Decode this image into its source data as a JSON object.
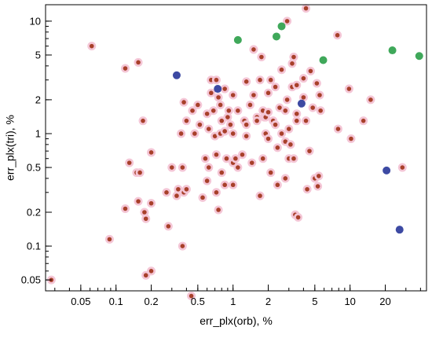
{
  "chart_data": {
    "type": "scatter",
    "title": "",
    "xlabel": "err_plx(orb), %",
    "ylabel": "err_plx(tri), %",
    "x_scale": "log",
    "y_scale": "log",
    "xlim": [
      0.025,
      45
    ],
    "ylim": [
      0.04,
      14
    ],
    "grid": false,
    "x_ticks": [
      {
        "value": 0.05,
        "label": "0.05"
      },
      {
        "value": 0.1,
        "label": "0.1"
      },
      {
        "value": 0.2,
        "label": "0.2"
      },
      {
        "value": 0.5,
        "label": "0.5"
      },
      {
        "value": 1,
        "label": "1"
      },
      {
        "value": 2,
        "label": "2"
      },
      {
        "value": 5,
        "label": "5"
      },
      {
        "value": 10,
        "label": "10"
      },
      {
        "value": 20,
        "label": "20"
      }
    ],
    "y_ticks": [
      {
        "value": 0.05,
        "label": "0.05"
      },
      {
        "value": 0.1,
        "label": "0.1"
      },
      {
        "value": 0.2,
        "label": "0.2"
      },
      {
        "value": 0.5,
        "label": "0.5"
      },
      {
        "value": 1,
        "label": "1"
      },
      {
        "value": 2,
        "label": "2"
      },
      {
        "value": 5,
        "label": "5"
      },
      {
        "value": 10,
        "label": "10"
      }
    ],
    "series": [
      {
        "color": "#a8402a",
        "halo_color": "#f4c6d6",
        "marker_size": "small",
        "points": [
          [
            0.028,
            0.05
          ],
          [
            0.062,
            6.0
          ],
          [
            0.088,
            0.115
          ],
          [
            0.12,
            0.215
          ],
          [
            0.12,
            3.8
          ],
          [
            0.13,
            0.55
          ],
          [
            0.15,
            0.45
          ],
          [
            0.155,
            0.25
          ],
          [
            0.155,
            4.3
          ],
          [
            0.16,
            0.45
          ],
          [
            0.17,
            1.3
          ],
          [
            0.175,
            0.2
          ],
          [
            0.18,
            0.175
          ],
          [
            0.18,
            0.055
          ],
          [
            0.2,
            0.06
          ],
          [
            0.2,
            0.24
          ],
          [
            0.2,
            0.68
          ],
          [
            0.27,
            0.3
          ],
          [
            0.28,
            0.15
          ],
          [
            0.3,
            0.5
          ],
          [
            0.33,
            0.28
          ],
          [
            0.34,
            0.32
          ],
          [
            0.36,
            1.0
          ],
          [
            0.37,
            0.1
          ],
          [
            0.37,
            0.5
          ],
          [
            0.38,
            0.3
          ],
          [
            0.38,
            1.9
          ],
          [
            0.4,
            0.32
          ],
          [
            0.4,
            1.3
          ],
          [
            0.44,
            0.036
          ],
          [
            0.45,
            1.6
          ],
          [
            0.47,
            1.0
          ],
          [
            0.5,
            1.8
          ],
          [
            0.52,
            1.2
          ],
          [
            0.55,
            0.27
          ],
          [
            0.58,
            0.6
          ],
          [
            0.6,
            0.38
          ],
          [
            0.6,
            1.5
          ],
          [
            0.62,
            0.5
          ],
          [
            0.62,
            1.1
          ],
          [
            0.65,
            2.3
          ],
          [
            0.65,
            3.0
          ],
          [
            0.68,
            1.6
          ],
          [
            0.7,
            0.95
          ],
          [
            0.72,
            3.0
          ],
          [
            0.72,
            0.3
          ],
          [
            0.72,
            0.65
          ],
          [
            0.75,
            2.1
          ],
          [
            0.75,
            0.21
          ],
          [
            0.78,
            1.8
          ],
          [
            0.78,
            1.0
          ],
          [
            0.8,
            0.45
          ],
          [
            0.8,
            1.3
          ],
          [
            0.85,
            1.05
          ],
          [
            0.85,
            2.5
          ],
          [
            0.85,
            0.35
          ],
          [
            0.88,
            0.6
          ],
          [
            0.9,
            1.4
          ],
          [
            0.92,
            1.6
          ],
          [
            0.95,
            1.2
          ],
          [
            1.0,
            0.35
          ],
          [
            1.0,
            2.2
          ],
          [
            1.0,
            0.55
          ],
          [
            1.0,
            1.0
          ],
          [
            1.05,
            0.6
          ],
          [
            1.1,
            1.6
          ],
          [
            1.1,
            0.5
          ],
          [
            1.2,
            0.65
          ],
          [
            1.25,
            1.3
          ],
          [
            1.3,
            1.2
          ],
          [
            1.3,
            2.9
          ],
          [
            1.3,
            0.95
          ],
          [
            1.4,
            1.8
          ],
          [
            1.45,
            0.55
          ],
          [
            1.5,
            5.6
          ],
          [
            1.5,
            2.2
          ],
          [
            1.6,
            1.4
          ],
          [
            1.6,
            1.3
          ],
          [
            1.7,
            3.0
          ],
          [
            1.7,
            0.28
          ],
          [
            1.75,
            4.8
          ],
          [
            1.8,
            1.6
          ],
          [
            1.8,
            0.6
          ],
          [
            1.85,
            1.4
          ],
          [
            1.9,
            1.0
          ],
          [
            1.9,
            1.4
          ],
          [
            2.0,
            1.55
          ],
          [
            2.0,
            2.3
          ],
          [
            2.0,
            0.9
          ],
          [
            2.1,
            3.0
          ],
          [
            2.1,
            0.45
          ],
          [
            2.2,
            1.3
          ],
          [
            2.3,
            1.2
          ],
          [
            2.3,
            2.6
          ],
          [
            2.4,
            0.35
          ],
          [
            2.4,
            0.75
          ],
          [
            2.5,
            1.7
          ],
          [
            2.6,
            1.0
          ],
          [
            2.6,
            3.7
          ],
          [
            2.8,
            0.4
          ],
          [
            2.8,
            0.85
          ],
          [
            2.8,
            1.6
          ],
          [
            2.9,
            2.0
          ],
          [
            2.9,
            10.0
          ],
          [
            3.0,
            1.1
          ],
          [
            3.0,
            0.6
          ],
          [
            3.1,
            0.8
          ],
          [
            3.2,
            2.6
          ],
          [
            3.2,
            4.2
          ],
          [
            3.3,
            4.8
          ],
          [
            3.3,
            0.6
          ],
          [
            3.4,
            0.19
          ],
          [
            3.5,
            2.7
          ],
          [
            3.5,
            1.3
          ],
          [
            3.5,
            1.5
          ],
          [
            3.6,
            0.18
          ],
          [
            4.0,
            2.1
          ],
          [
            4.0,
            3.1
          ],
          [
            4.2,
            1.3
          ],
          [
            4.2,
            13.0
          ],
          [
            4.3,
            0.32
          ],
          [
            4.5,
            0.7
          ],
          [
            4.6,
            3.6
          ],
          [
            4.8,
            1.7
          ],
          [
            5.0,
            0.4
          ],
          [
            5.2,
            2.8
          ],
          [
            5.3,
            0.34
          ],
          [
            5.4,
            0.42
          ],
          [
            5.5,
            2.2
          ],
          [
            5.6,
            1.6
          ],
          [
            7.8,
            7.5
          ],
          [
            7.9,
            1.1
          ],
          [
            9.8,
            2.5
          ],
          [
            10.2,
            0.9
          ],
          [
            13,
            1.3
          ],
          [
            15,
            2.0
          ],
          [
            28,
            0.5
          ]
        ]
      },
      {
        "color": "#3d4aa3",
        "marker_size": "large",
        "points": [
          [
            0.33,
            3.3
          ],
          [
            0.74,
            2.5
          ],
          [
            3.85,
            1.85
          ],
          [
            20.5,
            0.47
          ],
          [
            26.5,
            0.14
          ]
        ]
      },
      {
        "color": "#3fa85a",
        "marker_size": "large",
        "points": [
          [
            1.1,
            6.8
          ],
          [
            2.35,
            7.3
          ],
          [
            2.6,
            9.0
          ],
          [
            5.9,
            4.5
          ],
          [
            23,
            5.5
          ],
          [
            39,
            4.9
          ]
        ]
      }
    ]
  }
}
